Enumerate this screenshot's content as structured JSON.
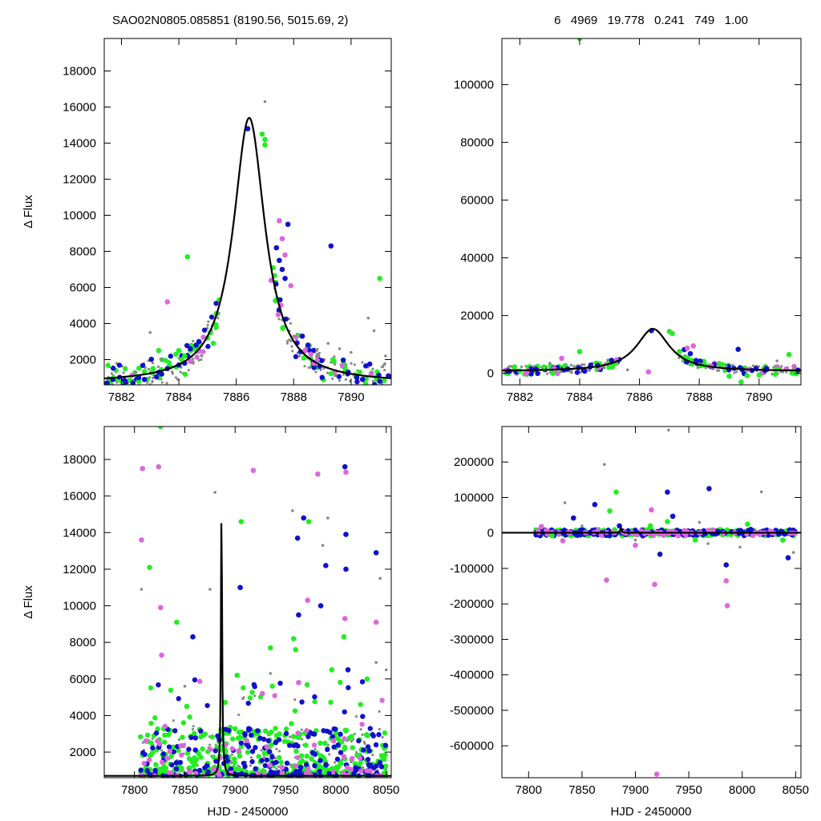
{
  "header": {
    "left": "SAO02N0805.085851 (8190.56, 5015.69,    2)",
    "right": "6   4969   19.778   0.241   749   1.00"
  },
  "colors": {
    "green": "#22ee22",
    "blue": "#1010cc",
    "magenta": "#dd66dd",
    "gray": "#888888",
    "model": "#000000"
  },
  "chart_data": [
    {
      "type": "scatter",
      "position": "top-left",
      "xlabel": "",
      "ylabel": "Δ Flux",
      "xlim": [
        7881.4,
        7891.4
      ],
      "ylim": [
        600,
        19800
      ],
      "xticks": [
        7882,
        7884,
        7886,
        7888,
        7890
      ],
      "yticks": [
        2000,
        4000,
        6000,
        8000,
        10000,
        12000,
        14000,
        16000,
        18000
      ],
      "model": {
        "t0": 7886.45,
        "peak": 15400,
        "base": 700,
        "width": 0.85
      },
      "series": [
        {
          "color": "green",
          "points": [
            [
              7881.6,
              900
            ],
            [
              7882.0,
              800
            ],
            [
              7882.3,
              850
            ],
            [
              7882.6,
              800
            ],
            [
              7882.9,
              900
            ],
            [
              7883.1,
              1500
            ],
            [
              7883.3,
              2500
            ],
            [
              7883.7,
              1600
            ],
            [
              7883.9,
              2300
            ],
            [
              7884.0,
              2500
            ],
            [
              7884.1,
              2000
            ],
            [
              7884.2,
              2200
            ],
            [
              7884.3,
              7700
            ],
            [
              7884.4,
              2500
            ],
            [
              7884.6,
              2700
            ],
            [
              7885.0,
              3200
            ],
            [
              7885.1,
              3500
            ],
            [
              7885.2,
              2900
            ],
            [
              7885.3,
              3800
            ],
            [
              7886.9,
              14500
            ],
            [
              7887.0,
              13900
            ],
            [
              7887.0,
              14200
            ],
            [
              7889.4,
              1900
            ],
            [
              7889.8,
              1500
            ],
            [
              7890.3,
              1300
            ],
            [
              7890.9,
              900
            ],
            [
              7891.0,
              6500
            ]
          ]
        },
        {
          "color": "blue",
          "points": [
            [
              7881.5,
              700
            ],
            [
              7881.7,
              900
            ],
            [
              7882.1,
              850
            ],
            [
              7882.4,
              700
            ],
            [
              7882.6,
              1000
            ],
            [
              7882.8,
              900
            ],
            [
              7883.4,
              1200
            ],
            [
              7883.6,
              1500
            ],
            [
              7884.0,
              1700
            ],
            [
              7884.2,
              1800
            ],
            [
              7884.4,
              2600
            ],
            [
              7884.6,
              2800
            ],
            [
              7884.7,
              3000
            ],
            [
              7886.4,
              14800
            ],
            [
              7887.4,
              8200
            ],
            [
              7887.5,
              7500
            ],
            [
              7887.6,
              7000
            ],
            [
              7887.7,
              6500
            ],
            [
              7887.8,
              9500
            ],
            [
              7888.3,
              3300
            ],
            [
              7888.5,
              2800
            ],
            [
              7888.7,
              2500
            ],
            [
              7889.3,
              8300
            ],
            [
              7889.9,
              1300
            ],
            [
              7890.2,
              1000
            ],
            [
              7890.4,
              900
            ],
            [
              7891.0,
              800
            ],
            [
              7891.3,
              1100
            ]
          ]
        },
        {
          "color": "magenta",
          "points": [
            [
              7883.6,
              5200
            ],
            [
              7884.4,
              1900
            ],
            [
              7887.5,
              9700
            ],
            [
              7887.6,
              8700
            ],
            [
              7887.7,
              7800
            ],
            [
              7887.9,
              6100
            ],
            [
              7888.4,
              2500
            ],
            [
              7888.6,
              2300
            ],
            [
              7890.7,
              1200
            ]
          ]
        },
        {
          "color": "gray",
          "points": [
            [
              7882.5,
              1300
            ],
            [
              7883.0,
              3500
            ],
            [
              7883.4,
              2000
            ],
            [
              7884.5,
              1800
            ],
            [
              7884.8,
              2200
            ],
            [
              7887.0,
              16300
            ],
            [
              7887.6,
              4200
            ],
            [
              7888.0,
              3300
            ],
            [
              7888.2,
              2200
            ],
            [
              7888.8,
              2500
            ],
            [
              7889.2,
              2900
            ],
            [
              7889.6,
              2600
            ],
            [
              7890.0,
              2400
            ],
            [
              7890.6,
              4300
            ],
            [
              7890.8,
              3600
            ],
            [
              7891.2,
              2200
            ]
          ]
        }
      ]
    },
    {
      "type": "scatter",
      "position": "top-right",
      "xlabel": "",
      "ylabel": "",
      "xlim": [
        7881.4,
        7891.4
      ],
      "ylim": [
        -4000,
        116000
      ],
      "xticks": [
        7882,
        7884,
        7886,
        7888,
        7890
      ],
      "yticks": [
        0,
        20000,
        40000,
        60000,
        80000,
        100000
      ],
      "model": {
        "t0": 7886.45,
        "peak": 15400,
        "base": 700,
        "width": 0.85
      },
      "series": [
        {
          "color": "green",
          "points": [
            [
              7884.0,
              116000
            ],
            [
              7884.0,
              7500
            ],
            [
              7882.8,
              1500
            ],
            [
              7883.5,
              2500
            ],
            [
              7885.2,
              3500
            ],
            [
              7887.0,
              14500
            ],
            [
              7887.1,
              13800
            ],
            [
              7889.0,
              -1000
            ],
            [
              7889.6,
              -800
            ],
            [
              7890.0,
              -600
            ],
            [
              7889.4,
              -3000
            ],
            [
              7891.0,
              6500
            ],
            [
              7882.0,
              800
            ],
            [
              7890.6,
              1400
            ]
          ]
        },
        {
          "color": "blue",
          "points": [
            [
              7881.6,
              800
            ],
            [
              7882.4,
              900
            ],
            [
              7883.6,
              1500
            ],
            [
              7884.6,
              2700
            ],
            [
              7886.4,
              14800
            ],
            [
              7887.5,
              8200
            ],
            [
              7887.7,
              6800
            ],
            [
              7888.5,
              3000
            ],
            [
              7889.3,
              8300
            ],
            [
              7890.2,
              1000
            ],
            [
              7891.3,
              1100
            ]
          ]
        },
        {
          "color": "magenta",
          "points": [
            [
              7886.3,
              500
            ],
            [
              7887.6,
              8700
            ],
            [
              7887.8,
              9500
            ],
            [
              7888.4,
              2500
            ],
            [
              7883.4,
              5200
            ]
          ]
        },
        {
          "color": "gray",
          "points": [
            [
              7883.0,
              3500
            ],
            [
              7884.8,
              2200
            ],
            [
              7888.0,
              3300
            ],
            [
              7888.9,
              2500
            ],
            [
              7890.6,
              4300
            ],
            [
              7891.2,
              2200
            ],
            [
              7885.6,
              1200
            ]
          ]
        }
      ]
    },
    {
      "type": "scatter",
      "position": "bottom-left",
      "xlabel": "HJD - 2450000",
      "ylabel": "Δ Flux",
      "xlim": [
        7770,
        8055
      ],
      "ylim": [
        600,
        19800
      ],
      "xticks": [
        7800,
        7850,
        7900,
        7950,
        8000,
        8050
      ],
      "yticks": [
        2000,
        4000,
        6000,
        8000,
        10000,
        12000,
        14000,
        16000,
        18000
      ],
      "model": {
        "t0": 7886.45,
        "peak": 15400,
        "base": 700,
        "width": 0.85
      },
      "series": [
        {
          "color": "magenta",
          "points": [
            [
              7808,
              17500
            ],
            [
              7824,
              17600
            ],
            [
              7807,
              13600
            ],
            [
              7826,
              9900
            ],
            [
              7827,
              7300
            ],
            [
              7918,
              17400
            ],
            [
              7982,
              17200
            ],
            [
              8010,
              17300
            ],
            [
              7972,
              10300
            ],
            [
              8009,
              9300
            ],
            [
              8040,
              9100
            ],
            [
              7963,
              5800
            ],
            [
              7927,
              5200
            ]
          ]
        },
        {
          "color": "blue",
          "points": [
            [
              8009,
              17600
            ],
            [
              7968,
              14800
            ],
            [
              7985,
              10000
            ],
            [
              7962,
              13700
            ],
            [
              7990,
              12200
            ],
            [
              8010,
              13900
            ],
            [
              8010,
              12000
            ],
            [
              8040,
              12900
            ],
            [
              7905,
              11000
            ],
            [
              7963,
              9500
            ],
            [
              7858,
              8300
            ],
            [
              8012,
              6500
            ]
          ]
        },
        {
          "color": "green",
          "points": [
            [
              7826,
              19800
            ],
            [
              7815,
              12100
            ],
            [
              7842,
              9100
            ],
            [
              7906,
              14600
            ],
            [
              7973,
              14600
            ],
            [
              7958,
              8200
            ],
            [
              8008,
              8300
            ],
            [
              7935,
              7700
            ],
            [
              7960,
              7600
            ],
            [
              7996,
              6500
            ],
            [
              7902,
              6200
            ],
            [
              8031,
              6000
            ],
            [
              7852,
              4500
            ]
          ]
        },
        {
          "color": "gray",
          "points": [
            [
              7807,
              10900
            ],
            [
              7880,
              16200
            ],
            [
              7875,
              10900
            ],
            [
              7957,
              15200
            ],
            [
              7992,
              14800
            ],
            [
              7987,
              13300
            ],
            [
              8044,
              11500
            ],
            [
              7935,
              6300
            ],
            [
              7850,
              5600
            ],
            [
              8040,
              6900
            ],
            [
              8050,
              6500
            ]
          ]
        }
      ]
    },
    {
      "type": "scatter",
      "position": "bottom-right",
      "xlabel": "HJD - 2450000",
      "ylabel": "",
      "xlim": [
        7775,
        8055
      ],
      "ylim": [
        -690000,
        300000
      ],
      "xticks": [
        7800,
        7850,
        7900,
        7950,
        8000,
        8050
      ],
      "yticks": [
        200000,
        100000,
        0,
        -100000,
        -200000,
        -300000,
        -400000,
        -500000,
        -600000
      ],
      "model": {
        "t0": 7886.45,
        "peak": 15400,
        "base": 700,
        "width": 0.85
      },
      "series": [
        {
          "color": "green",
          "points": [
            [
              7882,
              115000
            ],
            [
              7876,
              62000
            ],
            [
              7914,
              20000
            ],
            [
              7930,
              32000
            ],
            [
              7956,
              -20000
            ],
            [
              8005,
              25000
            ],
            [
              8038,
              -20000
            ],
            [
              7822,
              -8000
            ]
          ]
        },
        {
          "color": "blue",
          "points": [
            [
              7969,
              125000
            ],
            [
              7930,
              115000
            ],
            [
              7862,
              80000
            ],
            [
              7842,
              42000
            ],
            [
              7935,
              47000
            ],
            [
              7985,
              -90000
            ],
            [
              7923,
              -60000
            ],
            [
              8043,
              -70000
            ],
            [
              7885,
              20000
            ],
            [
              8008,
              10000
            ]
          ]
        },
        {
          "color": "magenta",
          "points": [
            [
              7920,
              -680000
            ],
            [
              7986,
              -205000
            ],
            [
              7918,
              -145000
            ],
            [
              7873,
              -133000
            ],
            [
              7915,
              65000
            ],
            [
              7985,
              -135000
            ],
            [
              7900,
              -35000
            ],
            [
              7832,
              -22000
            ],
            [
              7812,
              18000
            ]
          ]
        },
        {
          "color": "gray",
          "points": [
            [
              7871,
              193000
            ],
            [
              7931,
              290000
            ],
            [
              8018,
              116000
            ],
            [
              7834,
              85000
            ],
            [
              7960,
              30000
            ],
            [
              7968,
              -30000
            ],
            [
              7998,
              -40000
            ],
            [
              8048,
              -55000
            ],
            [
              7900,
              -20000
            ],
            [
              7850,
              20000
            ]
          ]
        }
      ]
    }
  ]
}
